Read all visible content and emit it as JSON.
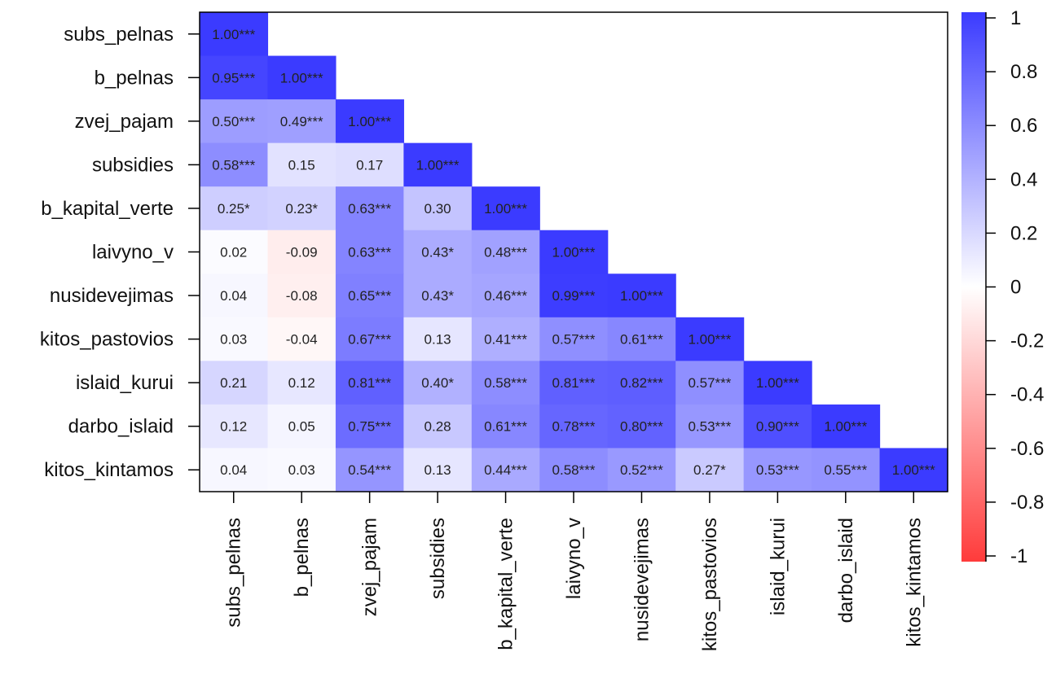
{
  "chart_data": {
    "type": "heatmap",
    "variables": [
      "subs_pelnas",
      "b_pelnas",
      "zvej_pajam",
      "subsidies",
      "b_kapital_verte",
      "laivyno_v",
      "nusidevejimas",
      "kitos_pastovios",
      "islaid_kurui",
      "darbo_islaid",
      "kitos_kintamos"
    ],
    "rows": [
      {
        "labels": [
          "1.00***"
        ],
        "values": [
          1.0
        ]
      },
      {
        "labels": [
          "0.95***",
          "1.00***"
        ],
        "values": [
          0.95,
          1.0
        ]
      },
      {
        "labels": [
          "0.50***",
          "0.49***",
          "1.00***"
        ],
        "values": [
          0.5,
          0.49,
          1.0
        ]
      },
      {
        "labels": [
          "0.58***",
          "0.15",
          "0.17",
          "1.00***"
        ],
        "values": [
          0.58,
          0.15,
          0.17,
          1.0
        ]
      },
      {
        "labels": [
          "0.25*",
          "0.23*",
          "0.63***",
          "0.30",
          "1.00***"
        ],
        "values": [
          0.25,
          0.23,
          0.63,
          0.3,
          1.0
        ]
      },
      {
        "labels": [
          "0.02",
          "-0.09",
          "0.63***",
          "0.43*",
          "0.48***",
          "1.00***"
        ],
        "values": [
          0.02,
          -0.09,
          0.63,
          0.43,
          0.48,
          1.0
        ]
      },
      {
        "labels": [
          "0.04",
          "-0.08",
          "0.65***",
          "0.43*",
          "0.46***",
          "0.99***",
          "1.00***"
        ],
        "values": [
          0.04,
          -0.08,
          0.65,
          0.43,
          0.46,
          0.99,
          1.0
        ]
      },
      {
        "labels": [
          "0.03",
          "-0.04",
          "0.67***",
          "0.13",
          "0.41***",
          "0.57***",
          "0.61***",
          "1.00***"
        ],
        "values": [
          0.03,
          -0.04,
          0.67,
          0.13,
          0.41,
          0.57,
          0.61,
          1.0
        ]
      },
      {
        "labels": [
          "0.21",
          "0.12",
          "0.81***",
          "0.40*",
          "0.58***",
          "0.81***",
          "0.82***",
          "0.57***",
          "1.00***"
        ],
        "values": [
          0.21,
          0.12,
          0.81,
          0.4,
          0.58,
          0.81,
          0.82,
          0.57,
          1.0
        ]
      },
      {
        "labels": [
          "0.12",
          "0.05",
          "0.75***",
          "0.28",
          "0.61***",
          "0.78***",
          "0.80***",
          "0.53***",
          "0.90***",
          "1.00***"
        ],
        "values": [
          0.12,
          0.05,
          0.75,
          0.28,
          0.61,
          0.78,
          0.8,
          0.53,
          0.9,
          1.0
        ]
      },
      {
        "labels": [
          "0.04",
          "0.03",
          "0.54***",
          "0.13",
          "0.44***",
          "0.58***",
          "0.52***",
          "0.27*",
          "0.53***",
          "0.55***",
          "1.00***"
        ],
        "values": [
          0.04,
          0.03,
          0.54,
          0.13,
          0.44,
          0.58,
          0.52,
          0.27,
          0.53,
          0.55,
          1.0
        ]
      }
    ],
    "colorbar": {
      "ticks": [
        "1",
        "0.8",
        "0.6",
        "0.4",
        "0.2",
        "0",
        "-0.2",
        "-0.4",
        "-0.6",
        "-0.8",
        "-1"
      ],
      "range": [
        -1,
        1
      ],
      "low_color": "#ff3b3b",
      "mid_color": "#ffffff",
      "high_color": "#3b3bff"
    }
  }
}
